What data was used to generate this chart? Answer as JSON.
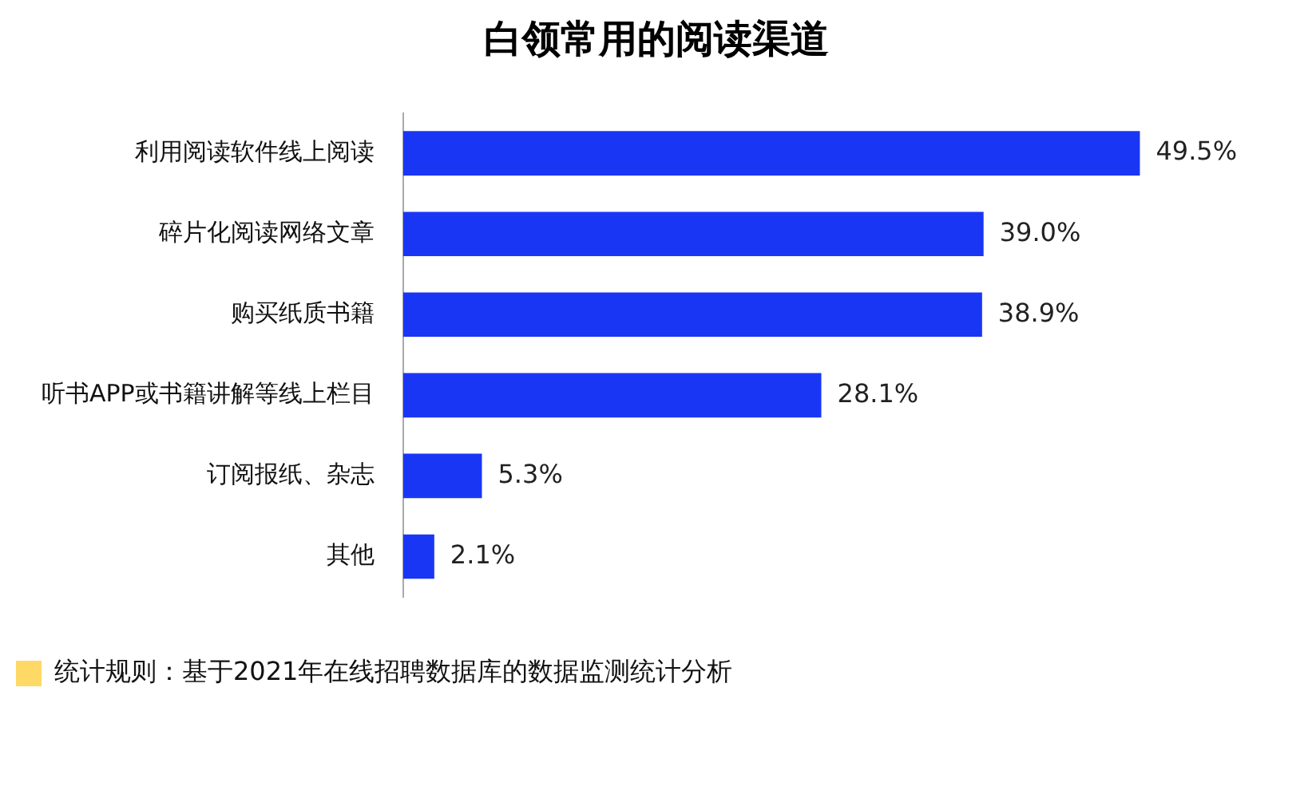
{
  "chart_data": {
    "type": "bar",
    "orientation": "horizontal",
    "title": "白领常用的阅读渠道",
    "categories": [
      "利用阅读软件线上阅读",
      "碎片化阅读网络文章",
      "购买纸质书籍",
      "听书APP或书籍讲解等线上栏目",
      "订阅报纸、杂志",
      "其他"
    ],
    "values": [
      49.5,
      39.0,
      38.9,
      28.1,
      5.3,
      2.1
    ],
    "value_labels": [
      "49.5%",
      "39.0%",
      "38.9%",
      "28.1%",
      "5.3%",
      "2.1%"
    ],
    "color": "#1a36f5",
    "grid": false,
    "legend": false,
    "tick_labels": "y",
    "annotations": [
      "统计规则：基于2021年在线招聘数据库的数据监测统计分析"
    ]
  }
}
